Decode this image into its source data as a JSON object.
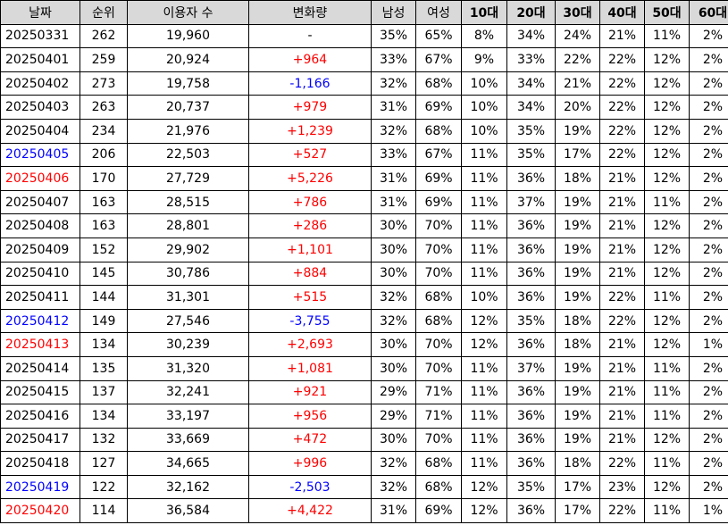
{
  "headers": [
    "날짜",
    "순위",
    "이용자 수",
    "변화량",
    "남성",
    "여성",
    "10대",
    "20대",
    "30대",
    "40대",
    "50대",
    "60대"
  ],
  "colors": {
    "header_bg": "#d9d9d9",
    "increase": "#ff0000",
    "decrease": "#0000ff",
    "saturday": "#0000ff",
    "sunday": "#ff0000"
  },
  "rows": [
    {
      "date": "20250331",
      "date_color": "",
      "rank": "262",
      "users": "19,960",
      "change": "-",
      "change_color": "",
      "male": "35%",
      "female": "65%",
      "a10": "8%",
      "a20": "34%",
      "a30": "24%",
      "a40": "21%",
      "a50": "11%",
      "a60": "2%"
    },
    {
      "date": "20250401",
      "date_color": "",
      "rank": "259",
      "users": "20,924",
      "change": "+964",
      "change_color": "red",
      "male": "33%",
      "female": "67%",
      "a10": "9%",
      "a20": "33%",
      "a30": "22%",
      "a40": "22%",
      "a50": "12%",
      "a60": "2%"
    },
    {
      "date": "20250402",
      "date_color": "",
      "rank": "273",
      "users": "19,758",
      "change": "-1,166",
      "change_color": "blue",
      "male": "32%",
      "female": "68%",
      "a10": "10%",
      "a20": "34%",
      "a30": "21%",
      "a40": "22%",
      "a50": "12%",
      "a60": "2%"
    },
    {
      "date": "20250403",
      "date_color": "",
      "rank": "263",
      "users": "20,737",
      "change": "+979",
      "change_color": "red",
      "male": "31%",
      "female": "69%",
      "a10": "10%",
      "a20": "34%",
      "a30": "20%",
      "a40": "22%",
      "a50": "12%",
      "a60": "2%"
    },
    {
      "date": "20250404",
      "date_color": "",
      "rank": "234",
      "users": "21,976",
      "change": "+1,239",
      "change_color": "red",
      "male": "32%",
      "female": "68%",
      "a10": "10%",
      "a20": "35%",
      "a30": "19%",
      "a40": "22%",
      "a50": "12%",
      "a60": "2%"
    },
    {
      "date": "20250405",
      "date_color": "blue",
      "rank": "206",
      "users": "22,503",
      "change": "+527",
      "change_color": "red",
      "male": "33%",
      "female": "67%",
      "a10": "11%",
      "a20": "35%",
      "a30": "17%",
      "a40": "22%",
      "a50": "12%",
      "a60": "2%"
    },
    {
      "date": "20250406",
      "date_color": "red",
      "rank": "170",
      "users": "27,729",
      "change": "+5,226",
      "change_color": "red",
      "male": "31%",
      "female": "69%",
      "a10": "11%",
      "a20": "36%",
      "a30": "18%",
      "a40": "21%",
      "a50": "12%",
      "a60": "2%"
    },
    {
      "date": "20250407",
      "date_color": "",
      "rank": "163",
      "users": "28,515",
      "change": "+786",
      "change_color": "red",
      "male": "31%",
      "female": "69%",
      "a10": "11%",
      "a20": "37%",
      "a30": "19%",
      "a40": "21%",
      "a50": "11%",
      "a60": "2%"
    },
    {
      "date": "20250408",
      "date_color": "",
      "rank": "163",
      "users": "28,801",
      "change": "+286",
      "change_color": "red",
      "male": "30%",
      "female": "70%",
      "a10": "11%",
      "a20": "36%",
      "a30": "19%",
      "a40": "21%",
      "a50": "12%",
      "a60": "2%"
    },
    {
      "date": "20250409",
      "date_color": "",
      "rank": "152",
      "users": "29,902",
      "change": "+1,101",
      "change_color": "red",
      "male": "30%",
      "female": "70%",
      "a10": "11%",
      "a20": "36%",
      "a30": "19%",
      "a40": "21%",
      "a50": "12%",
      "a60": "2%"
    },
    {
      "date": "20250410",
      "date_color": "",
      "rank": "145",
      "users": "30,786",
      "change": "+884",
      "change_color": "red",
      "male": "30%",
      "female": "70%",
      "a10": "11%",
      "a20": "36%",
      "a30": "19%",
      "a40": "21%",
      "a50": "12%",
      "a60": "2%"
    },
    {
      "date": "20250411",
      "date_color": "",
      "rank": "144",
      "users": "31,301",
      "change": "+515",
      "change_color": "red",
      "male": "32%",
      "female": "68%",
      "a10": "10%",
      "a20": "36%",
      "a30": "19%",
      "a40": "22%",
      "a50": "11%",
      "a60": "2%"
    },
    {
      "date": "20250412",
      "date_color": "blue",
      "rank": "149",
      "users": "27,546",
      "change": "-3,755",
      "change_color": "blue",
      "male": "32%",
      "female": "68%",
      "a10": "12%",
      "a20": "35%",
      "a30": "18%",
      "a40": "22%",
      "a50": "12%",
      "a60": "2%"
    },
    {
      "date": "20250413",
      "date_color": "red",
      "rank": "134",
      "users": "30,239",
      "change": "+2,693",
      "change_color": "red",
      "male": "30%",
      "female": "70%",
      "a10": "12%",
      "a20": "36%",
      "a30": "18%",
      "a40": "21%",
      "a50": "12%",
      "a60": "1%"
    },
    {
      "date": "20250414",
      "date_color": "",
      "rank": "135",
      "users": "31,320",
      "change": "+1,081",
      "change_color": "red",
      "male": "30%",
      "female": "70%",
      "a10": "11%",
      "a20": "37%",
      "a30": "19%",
      "a40": "21%",
      "a50": "11%",
      "a60": "2%"
    },
    {
      "date": "20250415",
      "date_color": "",
      "rank": "137",
      "users": "32,241",
      "change": "+921",
      "change_color": "red",
      "male": "29%",
      "female": "71%",
      "a10": "11%",
      "a20": "36%",
      "a30": "19%",
      "a40": "21%",
      "a50": "11%",
      "a60": "2%"
    },
    {
      "date": "20250416",
      "date_color": "",
      "rank": "134",
      "users": "33,197",
      "change": "+956",
      "change_color": "red",
      "male": "29%",
      "female": "71%",
      "a10": "11%",
      "a20": "36%",
      "a30": "19%",
      "a40": "21%",
      "a50": "11%",
      "a60": "2%"
    },
    {
      "date": "20250417",
      "date_color": "",
      "rank": "132",
      "users": "33,669",
      "change": "+472",
      "change_color": "red",
      "male": "30%",
      "female": "70%",
      "a10": "11%",
      "a20": "36%",
      "a30": "19%",
      "a40": "21%",
      "a50": "12%",
      "a60": "2%"
    },
    {
      "date": "20250418",
      "date_color": "",
      "rank": "127",
      "users": "34,665",
      "change": "+996",
      "change_color": "red",
      "male": "32%",
      "female": "68%",
      "a10": "11%",
      "a20": "36%",
      "a30": "18%",
      "a40": "22%",
      "a50": "11%",
      "a60": "2%"
    },
    {
      "date": "20250419",
      "date_color": "blue",
      "rank": "122",
      "users": "32,162",
      "change": "-2,503",
      "change_color": "blue",
      "male": "32%",
      "female": "68%",
      "a10": "12%",
      "a20": "35%",
      "a30": "17%",
      "a40": "23%",
      "a50": "12%",
      "a60": "2%"
    },
    {
      "date": "20250420",
      "date_color": "red",
      "rank": "114",
      "users": "36,584",
      "change": "+4,422",
      "change_color": "red",
      "male": "31%",
      "female": "69%",
      "a10": "12%",
      "a20": "36%",
      "a30": "17%",
      "a40": "22%",
      "a50": "11%",
      "a60": "1%"
    }
  ]
}
